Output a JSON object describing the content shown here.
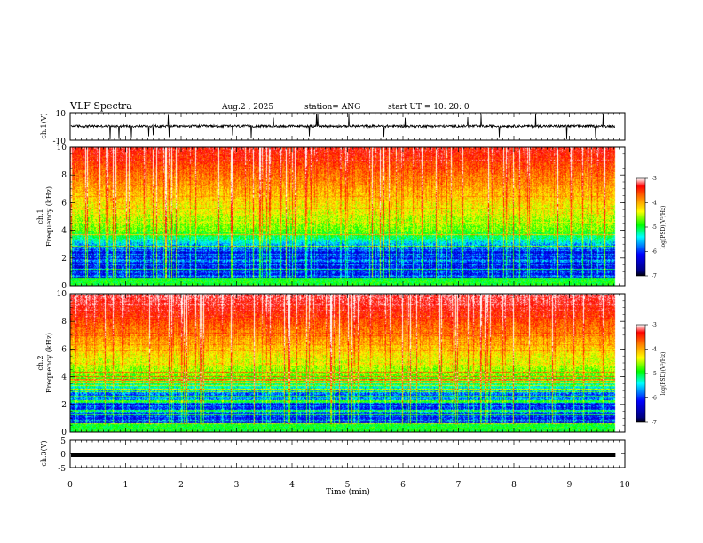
{
  "chart_data": {
    "type": "heatmap",
    "header": {
      "title": "VLF Spectra",
      "date": "Aug.2  , 2025",
      "station": "station= ANG",
      "start": "start  UT  =    10: 20: 0"
    },
    "x_axis": {
      "label": "Time  (min)",
      "range": [
        0,
        10
      ],
      "ticks": [
        "0",
        "1",
        "2",
        "3",
        "4",
        "5",
        "6",
        "7",
        "8",
        "9",
        "10"
      ],
      "data_end": 9.83
    },
    "panels": [
      {
        "kind": "waveform",
        "ylabel": "ch.1(V)",
        "ylim": [
          -10,
          10
        ],
        "yticks": [
          "10",
          "-10"
        ],
        "baseline": 0.2,
        "noise_amplitude": 1.8
      },
      {
        "kind": "spectrogram",
        "ylabel_top": "ch.1",
        "ylabel_bottom": "Frequency  (kHz)",
        "ylim": [
          0,
          10
        ],
        "yticks": [
          "0",
          "2",
          "4",
          "6",
          "8",
          "10"
        ],
        "colorbar": {
          "label": "log(PSD)(V²/Hz)",
          "range": [
            -7,
            -3
          ],
          "ticks": [
            "-3",
            "-4",
            "-5",
            "-6",
            "-7"
          ]
        }
      },
      {
        "kind": "spectrogram",
        "ylabel_top": "ch.2",
        "ylabel_bottom": "Frequency  (kHz)",
        "ylim": [
          0,
          10
        ],
        "yticks": [
          "0",
          "2",
          "4",
          "6",
          "8",
          "10"
        ],
        "colorbar": {
          "label": "log(PSD)(V²/Hz)",
          "range": [
            -7,
            -3
          ],
          "ticks": [
            "-3",
            "-4",
            "-5",
            "-6",
            "-7"
          ]
        }
      },
      {
        "kind": "waveform",
        "ylabel": "ch.3(V)",
        "ylim": [
          -5,
          5
        ],
        "yticks": [
          "5",
          "0",
          "-5"
        ],
        "baseline": -0.5,
        "noise_amplitude": 0.2
      }
    ],
    "colormap": [
      "#00007f",
      "#0000ff",
      "#00ffff",
      "#00ff00",
      "#ffff00",
      "#ff7f00",
      "#ff0000",
      "#ffffff"
    ]
  }
}
